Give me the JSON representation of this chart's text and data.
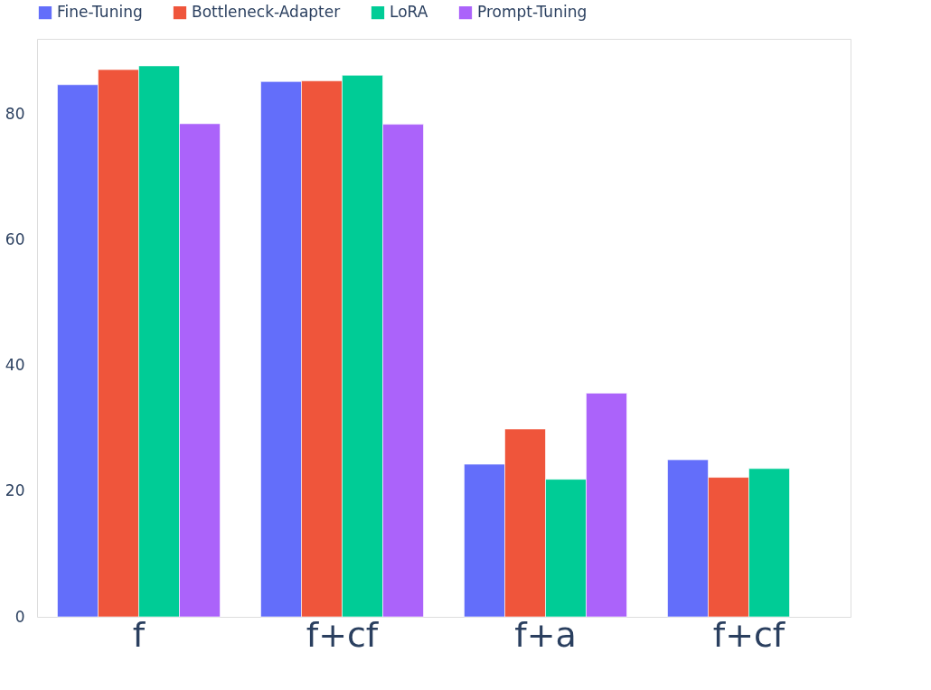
{
  "chart_data": {
    "type": "bar",
    "categories": [
      "f",
      "f+cf",
      "f+a",
      "f+cf"
    ],
    "series": [
      {
        "name": "Fine-Tuning",
        "color": "#636efa",
        "values": [
          84.7,
          85.2,
          24.3,
          25.0
        ]
      },
      {
        "name": "Bottleneck-Adapter",
        "color": "#ef553b",
        "values": [
          87.1,
          85.3,
          29.9,
          22.2
        ]
      },
      {
        "name": "LoRA",
        "color": "#00cc96",
        "values": [
          87.7,
          86.2,
          21.9,
          23.6
        ]
      },
      {
        "name": "Prompt-Tuning",
        "color": "#ab63fa",
        "values": [
          78.5,
          78.4,
          35.6,
          null
        ]
      }
    ],
    "ylim": [
      0,
      92
    ],
    "yticks": [
      0,
      20,
      40,
      60,
      80
    ],
    "grid": false,
    "legend": "top"
  }
}
